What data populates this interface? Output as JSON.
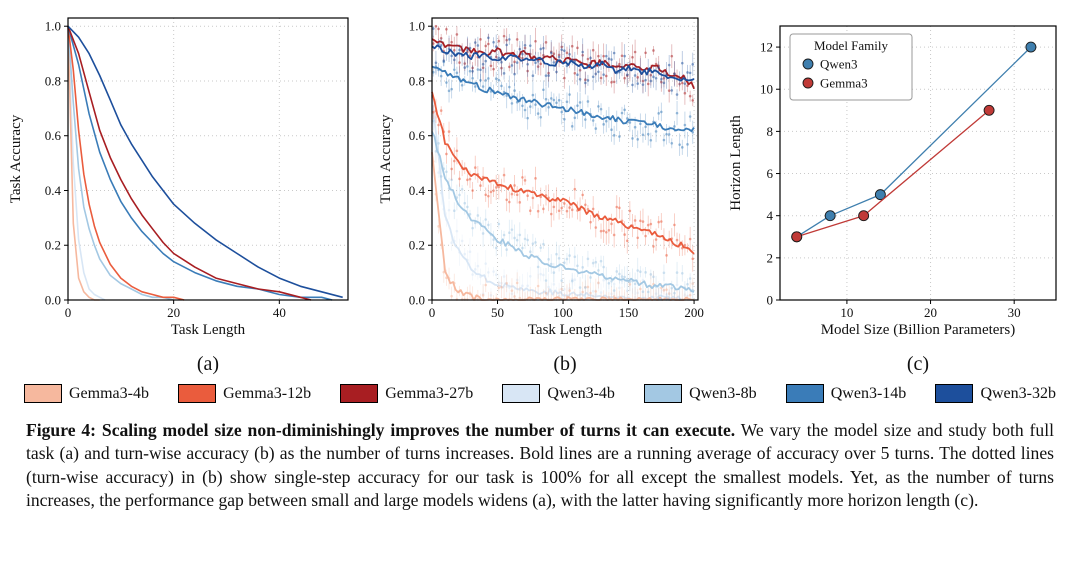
{
  "panels": {
    "a": {
      "label": "(a)"
    },
    "b": {
      "label": "(b)"
    },
    "c": {
      "label": "(c)"
    }
  },
  "legend": {
    "items": [
      {
        "label": "Gemma3-4b",
        "color": "#f6b89e"
      },
      {
        "label": "Gemma3-12b",
        "color": "#ea5c3d"
      },
      {
        "label": "Gemma3-27b",
        "color": "#a81e22"
      },
      {
        "label": "Qwen3-4b",
        "color": "#d8e6f5"
      },
      {
        "label": "Qwen3-8b",
        "color": "#a3c8e3"
      },
      {
        "label": "Qwen3-14b",
        "color": "#3a7cb8"
      },
      {
        "label": "Qwen3-32b",
        "color": "#1d4f9c"
      }
    ]
  },
  "caption": {
    "bold": "Figure 4: Scaling model size non-diminishingly improves the number of turns it can execute.",
    "rest": " We vary the model size and study both full task (a) and turn-wise accuracy (b) as the number of turns increases. Bold lines are a running average of accuracy over 5 turns. The dotted lines (turn-wise accuracy) in (b) show single-step accuracy for our task is 100% for all except the smallest models. Yet, as the number of turns increases, the performance gap between small and large models widens (a), with the latter having significantly more horizon length (c)."
  },
  "chart_data": [
    {
      "id": "a",
      "type": "line",
      "title": "",
      "xlabel": "Task Length",
      "ylabel": "Task Accuracy",
      "xlim": [
        0,
        53
      ],
      "ylim": [
        0,
        1.03
      ],
      "xticks": [
        0,
        20,
        40
      ],
      "yticks": [
        0,
        0.2,
        0.4,
        0.6,
        0.8,
        1.0
      ],
      "grid": true,
      "series": [
        {
          "name": "Qwen3-4b",
          "color": "#d8e6f5",
          "x": [
            0,
            1,
            2,
            3,
            4,
            5,
            6,
            7
          ],
          "y": [
            1.0,
            0.5,
            0.22,
            0.1,
            0.04,
            0.02,
            0.01,
            0.0
          ]
        },
        {
          "name": "Gemma3-4b",
          "color": "#f6b89e",
          "x": [
            0,
            1,
            2,
            3,
            4,
            5,
            6
          ],
          "y": [
            1.0,
            0.28,
            0.08,
            0.03,
            0.01,
            0.0,
            0.0
          ]
        },
        {
          "name": "Qwen3-8b",
          "color": "#a3c8e3",
          "x": [
            0,
            1,
            2,
            3,
            4,
            5,
            6,
            8,
            10,
            12,
            14,
            16,
            18,
            20
          ],
          "y": [
            1.0,
            0.72,
            0.48,
            0.34,
            0.26,
            0.2,
            0.15,
            0.09,
            0.06,
            0.04,
            0.02,
            0.01,
            0.01,
            0.0
          ]
        },
        {
          "name": "Gemma3-12b",
          "color": "#ea5c3d",
          "x": [
            0,
            1,
            2,
            3,
            4,
            5,
            6,
            8,
            10,
            12,
            14,
            16,
            18,
            20,
            22
          ],
          "y": [
            1.0,
            0.84,
            0.62,
            0.46,
            0.35,
            0.27,
            0.21,
            0.13,
            0.08,
            0.05,
            0.03,
            0.02,
            0.01,
            0.01,
            0.0
          ]
        },
        {
          "name": "Qwen3-14b",
          "color": "#3a7cb8",
          "x": [
            0,
            2,
            4,
            6,
            8,
            10,
            12,
            14,
            16,
            18,
            20,
            24,
            28,
            32,
            36,
            40,
            44,
            48,
            50
          ],
          "y": [
            1.0,
            0.86,
            0.68,
            0.54,
            0.44,
            0.36,
            0.3,
            0.25,
            0.21,
            0.17,
            0.14,
            0.1,
            0.07,
            0.05,
            0.04,
            0.02,
            0.01,
            0.01,
            0.0
          ]
        },
        {
          "name": "Gemma3-27b",
          "color": "#a81e22",
          "x": [
            0,
            2,
            4,
            6,
            8,
            10,
            12,
            14,
            16,
            18,
            20,
            24,
            28,
            32,
            36,
            40,
            44,
            46
          ],
          "y": [
            1.0,
            0.9,
            0.76,
            0.62,
            0.52,
            0.44,
            0.37,
            0.31,
            0.26,
            0.21,
            0.17,
            0.12,
            0.08,
            0.06,
            0.04,
            0.03,
            0.01,
            0.0
          ]
        },
        {
          "name": "Qwen3-32b",
          "color": "#1d4f9c",
          "x": [
            0,
            2,
            4,
            6,
            8,
            10,
            12,
            14,
            16,
            18,
            20,
            24,
            28,
            32,
            36,
            40,
            44,
            48,
            52
          ],
          "y": [
            1.0,
            0.96,
            0.9,
            0.82,
            0.73,
            0.64,
            0.57,
            0.51,
            0.45,
            0.4,
            0.35,
            0.28,
            0.22,
            0.17,
            0.12,
            0.08,
            0.05,
            0.03,
            0.01
          ]
        }
      ]
    },
    {
      "id": "b",
      "type": "line+scatter",
      "title": "",
      "xlabel": "Task Length",
      "ylabel": "Turn Accuracy",
      "xlim": [
        0,
        203
      ],
      "ylim": [
        0,
        1.03
      ],
      "xticks": [
        0,
        50,
        100,
        150,
        200
      ],
      "yticks": [
        0,
        0.2,
        0.4,
        0.6,
        0.8,
        1.0
      ],
      "grid": true,
      "note": "Bold lines are running average over 5 turns; dotted points are per-turn accuracy",
      "x": [
        0,
        10,
        20,
        30,
        40,
        50,
        60,
        70,
        80,
        90,
        100,
        110,
        120,
        130,
        140,
        150,
        160,
        170,
        180,
        190,
        200
      ],
      "series": [
        {
          "name": "Qwen3-4b",
          "color": "#d8e6f5",
          "values": [
            0.75,
            0.3,
            0.18,
            0.12,
            0.08,
            0.06,
            0.05,
            0.04,
            0.03,
            0.03,
            0.02,
            0.02,
            0.02,
            0.01,
            0.01,
            0.01,
            0.01,
            0.01,
            0.01,
            0.0,
            0.0
          ]
        },
        {
          "name": "Gemma3-4b",
          "color": "#f6b89e",
          "values": [
            0.55,
            0.1,
            0.03,
            0.01,
            0.0,
            0.0,
            0.0,
            0.0,
            0.0,
            0.0,
            0.0,
            0.0,
            0.0,
            0.0,
            0.0,
            0.0,
            0.0,
            0.0,
            0.0,
            0.0,
            0.0
          ]
        },
        {
          "name": "Qwen3-8b",
          "color": "#a3c8e3",
          "values": [
            0.62,
            0.45,
            0.36,
            0.3,
            0.26,
            0.22,
            0.2,
            0.17,
            0.15,
            0.13,
            0.12,
            0.11,
            0.1,
            0.09,
            0.08,
            0.07,
            0.06,
            0.05,
            0.05,
            0.04,
            0.03
          ]
        },
        {
          "name": "Gemma3-12b",
          "color": "#ea5c3d",
          "values": [
            0.75,
            0.58,
            0.5,
            0.46,
            0.44,
            0.43,
            0.41,
            0.4,
            0.38,
            0.37,
            0.36,
            0.34,
            0.32,
            0.3,
            0.29,
            0.27,
            0.26,
            0.24,
            0.22,
            0.2,
            0.17
          ]
        },
        {
          "name": "Qwen3-14b",
          "color": "#3a7cb8",
          "values": [
            0.86,
            0.83,
            0.81,
            0.79,
            0.77,
            0.76,
            0.74,
            0.73,
            0.72,
            0.71,
            0.7,
            0.69,
            0.68,
            0.67,
            0.66,
            0.65,
            0.65,
            0.64,
            0.63,
            0.62,
            0.62
          ]
        },
        {
          "name": "Gemma3-27b",
          "color": "#a81e22",
          "values": [
            0.95,
            0.93,
            0.92,
            0.91,
            0.9,
            0.91,
            0.89,
            0.9,
            0.88,
            0.89,
            0.87,
            0.88,
            0.86,
            0.87,
            0.85,
            0.86,
            0.84,
            0.85,
            0.83,
            0.82,
            0.78
          ]
        },
        {
          "name": "Qwen3-32b",
          "color": "#1d4f9c",
          "values": [
            0.93,
            0.91,
            0.9,
            0.89,
            0.9,
            0.88,
            0.89,
            0.87,
            0.88,
            0.86,
            0.87,
            0.86,
            0.85,
            0.86,
            0.84,
            0.85,
            0.83,
            0.84,
            0.82,
            0.81,
            0.8
          ]
        }
      ]
    },
    {
      "id": "c",
      "type": "scatter-line",
      "title": "",
      "xlabel": "Model Size (Billion Parameters)",
      "ylabel": "Horizon Length",
      "xlim": [
        2,
        35
      ],
      "ylim": [
        0,
        13
      ],
      "xticks": [
        10,
        20,
        30
      ],
      "yticks": [
        0,
        2,
        4,
        6,
        8,
        10,
        12
      ],
      "grid": true,
      "legend": {
        "title": "Model Family",
        "position": "upper-left"
      },
      "series": [
        {
          "name": "Qwen3",
          "color": "#3f7fae",
          "points": [
            [
              4,
              3
            ],
            [
              8,
              4
            ],
            [
              14,
              5
            ],
            [
              32,
              12
            ]
          ]
        },
        {
          "name": "Gemma3",
          "color": "#c03a37",
          "points": [
            [
              4,
              3
            ],
            [
              12,
              4
            ],
            [
              27,
              9
            ]
          ]
        }
      ]
    }
  ]
}
